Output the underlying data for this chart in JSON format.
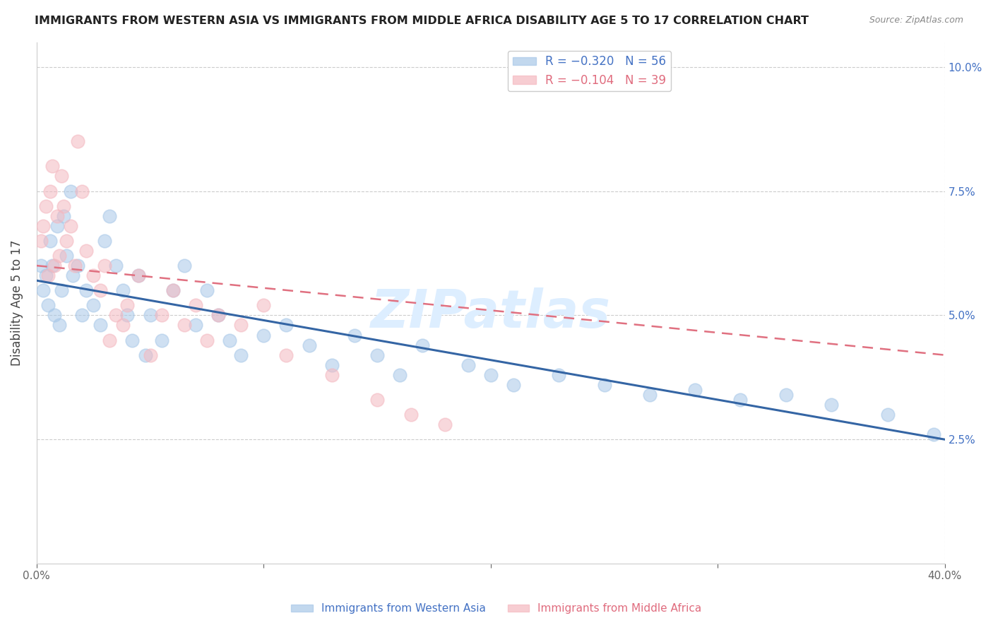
{
  "title": "IMMIGRANTS FROM WESTERN ASIA VS IMMIGRANTS FROM MIDDLE AFRICA DISABILITY AGE 5 TO 17 CORRELATION CHART",
  "source": "Source: ZipAtlas.com",
  "ylabel": "Disability Age 5 to 17",
  "x_min": 0.0,
  "x_max": 0.4,
  "y_min": 0.0,
  "y_max": 0.105,
  "series1_color": "#a8c8e8",
  "series2_color": "#f4b8c0",
  "trendline1_color": "#3465a4",
  "trendline2_color": "#e07080",
  "watermark": "ZIPatlas",
  "watermark_color": "#ddeeff",
  "R1": -0.32,
  "N1": 56,
  "R2": -0.104,
  "N2": 39,
  "western_asia_x": [
    0.002,
    0.003,
    0.004,
    0.005,
    0.006,
    0.007,
    0.008,
    0.009,
    0.01,
    0.011,
    0.012,
    0.013,
    0.015,
    0.016,
    0.018,
    0.02,
    0.022,
    0.025,
    0.028,
    0.03,
    0.032,
    0.035,
    0.038,
    0.04,
    0.042,
    0.045,
    0.048,
    0.05,
    0.055,
    0.06,
    0.065,
    0.07,
    0.075,
    0.08,
    0.085,
    0.09,
    0.1,
    0.11,
    0.12,
    0.13,
    0.14,
    0.15,
    0.16,
    0.17,
    0.19,
    0.2,
    0.21,
    0.23,
    0.25,
    0.27,
    0.29,
    0.31,
    0.33,
    0.35,
    0.375,
    0.395
  ],
  "western_asia_y": [
    0.06,
    0.055,
    0.058,
    0.052,
    0.065,
    0.06,
    0.05,
    0.068,
    0.048,
    0.055,
    0.07,
    0.062,
    0.075,
    0.058,
    0.06,
    0.05,
    0.055,
    0.052,
    0.048,
    0.065,
    0.07,
    0.06,
    0.055,
    0.05,
    0.045,
    0.058,
    0.042,
    0.05,
    0.045,
    0.055,
    0.06,
    0.048,
    0.055,
    0.05,
    0.045,
    0.042,
    0.046,
    0.048,
    0.044,
    0.04,
    0.046,
    0.042,
    0.038,
    0.044,
    0.04,
    0.038,
    0.036,
    0.038,
    0.036,
    0.034,
    0.035,
    0.033,
    0.034,
    0.032,
    0.03,
    0.026
  ],
  "middle_africa_x": [
    0.002,
    0.003,
    0.004,
    0.005,
    0.006,
    0.007,
    0.008,
    0.009,
    0.01,
    0.011,
    0.012,
    0.013,
    0.015,
    0.017,
    0.018,
    0.02,
    0.022,
    0.025,
    0.028,
    0.03,
    0.032,
    0.035,
    0.038,
    0.04,
    0.045,
    0.05,
    0.055,
    0.06,
    0.065,
    0.07,
    0.075,
    0.08,
    0.09,
    0.1,
    0.11,
    0.13,
    0.15,
    0.165,
    0.18
  ],
  "middle_africa_y": [
    0.065,
    0.068,
    0.072,
    0.058,
    0.075,
    0.08,
    0.06,
    0.07,
    0.062,
    0.078,
    0.072,
    0.065,
    0.068,
    0.06,
    0.085,
    0.075,
    0.063,
    0.058,
    0.055,
    0.06,
    0.045,
    0.05,
    0.048,
    0.052,
    0.058,
    0.042,
    0.05,
    0.055,
    0.048,
    0.052,
    0.045,
    0.05,
    0.048,
    0.052,
    0.042,
    0.038,
    0.033,
    0.03,
    0.028
  ],
  "trendline1_x_start": 0.0,
  "trendline1_x_end": 0.4,
  "trendline1_y_start": 0.057,
  "trendline1_y_end": 0.025,
  "trendline2_x_start": 0.0,
  "trendline2_x_end": 0.4,
  "trendline2_y_start": 0.06,
  "trendline2_y_end": 0.042
}
